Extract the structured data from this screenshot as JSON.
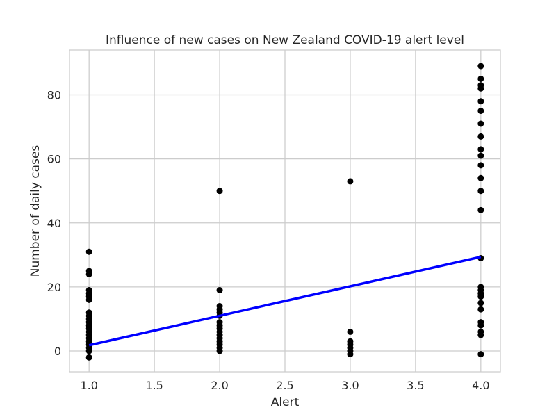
{
  "chart_data": {
    "type": "scatter",
    "title": "Influence of new cases on New Zealand COVID-19 alert level",
    "xlabel": "Alert",
    "ylabel": "Number of daily cases",
    "xlim": [
      0.85,
      4.15
    ],
    "ylim": [
      -6.5,
      94
    ],
    "xticks": [
      1.0,
      1.5,
      2.0,
      2.5,
      3.0,
      3.5,
      4.0
    ],
    "xtick_labels": [
      "1.0",
      "1.5",
      "2.0",
      "2.5",
      "3.0",
      "3.5",
      "4.0"
    ],
    "yticks": [
      0,
      20,
      40,
      60,
      80
    ],
    "ytick_labels": [
      "0",
      "20",
      "40",
      "60",
      "80"
    ],
    "grid": true,
    "legend": "none",
    "colors": {
      "points": "#000000",
      "fit_line": "#0000ff",
      "grid": "#cccccc",
      "background": "#ffffff"
    },
    "series": [
      {
        "kind": "scatter",
        "points": [
          [
            1,
            31
          ],
          [
            1,
            25
          ],
          [
            1,
            24
          ],
          [
            1,
            19
          ],
          [
            1,
            18
          ],
          [
            1,
            17
          ],
          [
            1,
            16
          ],
          [
            1,
            12
          ],
          [
            1,
            11
          ],
          [
            1,
            10
          ],
          [
            1,
            9
          ],
          [
            1,
            8
          ],
          [
            1,
            7
          ],
          [
            1,
            6
          ],
          [
            1,
            5
          ],
          [
            1,
            4
          ],
          [
            1,
            3
          ],
          [
            1,
            2
          ],
          [
            1,
            1
          ],
          [
            1,
            0
          ],
          [
            1,
            -2
          ],
          [
            2,
            50
          ],
          [
            2,
            19
          ],
          [
            2,
            14
          ],
          [
            2,
            13
          ],
          [
            2,
            12
          ],
          [
            2,
            11
          ],
          [
            2,
            9
          ],
          [
            2,
            8
          ],
          [
            2,
            7
          ],
          [
            2,
            6
          ],
          [
            2,
            5
          ],
          [
            2,
            4
          ],
          [
            2,
            3
          ],
          [
            2,
            2
          ],
          [
            2,
            1
          ],
          [
            2,
            0
          ],
          [
            3,
            53
          ],
          [
            3,
            6
          ],
          [
            3,
            3
          ],
          [
            3,
            2
          ],
          [
            3,
            1
          ],
          [
            3,
            0
          ],
          [
            3,
            -1
          ],
          [
            4,
            89
          ],
          [
            4,
            85
          ],
          [
            4,
            83
          ],
          [
            4,
            82
          ],
          [
            4,
            78
          ],
          [
            4,
            75
          ],
          [
            4,
            71
          ],
          [
            4,
            67
          ],
          [
            4,
            63
          ],
          [
            4,
            61
          ],
          [
            4,
            58
          ],
          [
            4,
            54
          ],
          [
            4,
            50
          ],
          [
            4,
            44
          ],
          [
            4,
            29
          ],
          [
            4,
            20
          ],
          [
            4,
            19
          ],
          [
            4,
            18
          ],
          [
            4,
            17
          ],
          [
            4,
            15
          ],
          [
            4,
            13
          ],
          [
            4,
            9
          ],
          [
            4,
            8
          ],
          [
            4,
            6
          ],
          [
            4,
            5
          ],
          [
            4,
            -1
          ]
        ]
      },
      {
        "kind": "line",
        "x": [
          1.0,
          4.0
        ],
        "y": [
          1.8,
          29.4
        ]
      }
    ]
  }
}
